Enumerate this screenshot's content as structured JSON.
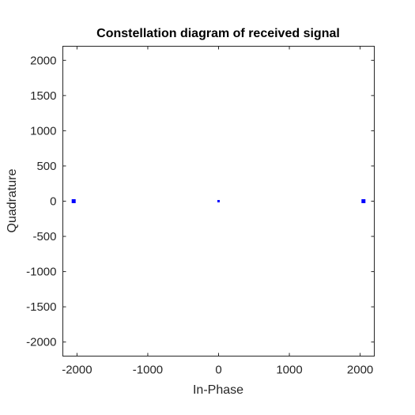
{
  "chart_data": {
    "type": "scatter",
    "title": "Constellation diagram of received signal",
    "xlabel": "In-Phase",
    "ylabel": "Quadrature",
    "xlim": [
      -2200,
      2200
    ],
    "ylim": [
      -2200,
      2200
    ],
    "xticks": [
      -2000,
      -1000,
      0,
      1000,
      2000
    ],
    "yticks": [
      -2000,
      -1500,
      -1000,
      -500,
      0,
      500,
      1000,
      1500,
      2000
    ],
    "xtick_labels": [
      "-2000",
      "-1000",
      "0",
      "1000",
      "2000"
    ],
    "ytick_labels": [
      "-2000",
      "-1500",
      "-1000",
      "-500",
      "0",
      "500",
      "1000",
      "1500",
      "2000"
    ],
    "grid": false,
    "box": true,
    "marker_color": "#0000ff",
    "points": [
      {
        "x": -2047,
        "y": 0,
        "size": "large"
      },
      {
        "x": 0,
        "y": 0,
        "size": "small"
      },
      {
        "x": 2047,
        "y": 0,
        "size": "large"
      }
    ]
  }
}
